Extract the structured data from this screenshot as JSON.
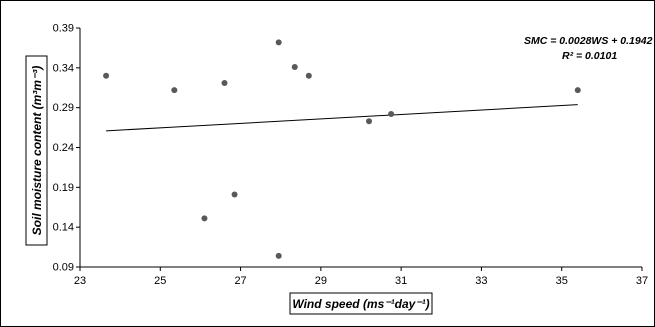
{
  "chart_data": {
    "type": "scatter",
    "title": "",
    "xlabel": "Wind speed (ms⁻¹day⁻¹)",
    "ylabel": "Soil moisture content (m³m⁻³)",
    "xlim": [
      23,
      37
    ],
    "ylim": [
      0.09,
      0.39
    ],
    "x_ticks": [
      "23",
      "25",
      "27",
      "29",
      "31",
      "33",
      "35",
      "37"
    ],
    "y_ticks": [
      "0.09",
      "0.14",
      "0.19",
      "0.24",
      "0.29",
      "0.34",
      "0.39"
    ],
    "grid": false,
    "series": [
      {
        "marker_color": "#595959",
        "points": [
          {
            "x": 23.65,
            "y": 0.33
          },
          {
            "x": 25.35,
            "y": 0.312
          },
          {
            "x": 26.1,
            "y": 0.151
          },
          {
            "x": 26.6,
            "y": 0.321
          },
          {
            "x": 26.85,
            "y": 0.181
          },
          {
            "x": 27.95,
            "y": 0.372
          },
          {
            "x": 27.95,
            "y": 0.104
          },
          {
            "x": 28.35,
            "y": 0.341
          },
          {
            "x": 28.7,
            "y": 0.33
          },
          {
            "x": 30.2,
            "y": 0.273
          },
          {
            "x": 30.75,
            "y": 0.282
          },
          {
            "x": 35.4,
            "y": 0.312
          }
        ]
      }
    ],
    "trendline": {
      "x": [
        23.65,
        35.4
      ],
      "y": [
        0.2609,
        0.2938
      ],
      "color": "#000000"
    },
    "annotations": [
      "SMC = 0.0028WS + 0.1942",
      "R² = 0.0101"
    ]
  }
}
